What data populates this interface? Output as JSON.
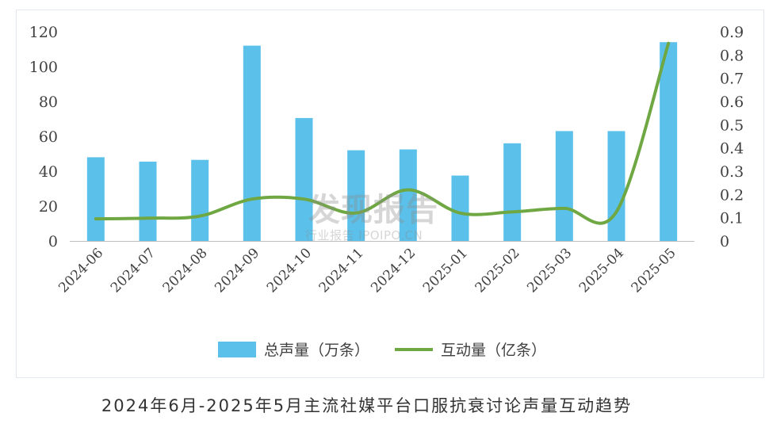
{
  "chart_data": {
    "type": "bar",
    "categories": [
      "2024-06",
      "2024-07",
      "2024-08",
      "2024-09",
      "2024-10",
      "2024-11",
      "2024-12",
      "2025-01",
      "2025-02",
      "2025-03",
      "2025-04",
      "2025-05"
    ],
    "series": [
      {
        "name": "总声量（万条）",
        "type": "bar",
        "axis": "left",
        "color": "#5bc0ea",
        "values": [
          48,
          45.5,
          46.5,
          112,
          70.5,
          52,
          52.5,
          37.5,
          56,
          63,
          63,
          114
        ]
      },
      {
        "name": "互动量（亿条）",
        "type": "line",
        "axis": "right",
        "color": "#6fa843",
        "values": [
          0.095,
          0.098,
          0.107,
          0.18,
          0.18,
          0.12,
          0.22,
          0.12,
          0.125,
          0.14,
          0.125,
          0.85
        ]
      }
    ],
    "y_left": {
      "min": 0,
      "max": 120,
      "ticks": [
        "0",
        "20",
        "40",
        "60",
        "80",
        "100",
        "120"
      ]
    },
    "y_right": {
      "min": 0,
      "max": 0.9,
      "ticks": [
        "0",
        "0.1",
        "0.2",
        "0.3",
        "0.4",
        "0.5",
        "0.6",
        "0.7",
        "0.8",
        "0.9"
      ]
    },
    "grid": false,
    "legend": "bottom"
  },
  "caption": "2024年6月-2025年5月主流社媒平台口服抗衰讨论声量互动趋势",
  "watermark": {
    "main": "发现报告",
    "sub": "行业报告 IPOIPO.CN"
  }
}
